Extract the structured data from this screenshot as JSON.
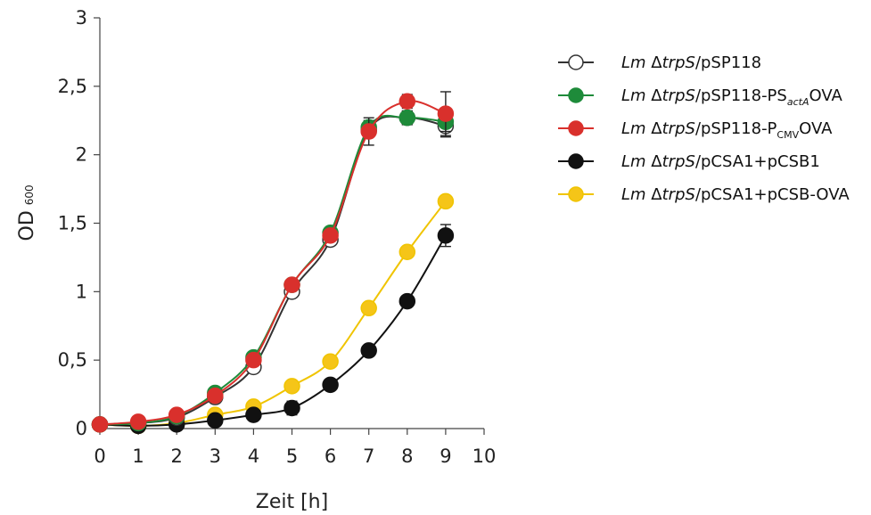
{
  "chart_data": {
    "type": "line",
    "xlabel": "Zeit [h]",
    "ylabel": "OD",
    "ylabel_sub": "600",
    "xlim": [
      0,
      10
    ],
    "ylim": [
      0,
      3
    ],
    "xticks": [
      0,
      1,
      2,
      3,
      4,
      5,
      6,
      7,
      8,
      9,
      10
    ],
    "yticks": [
      0,
      0.5,
      1,
      1.5,
      2,
      2.5,
      3
    ],
    "ytick_labels": [
      "0",
      "0,5",
      "1",
      "1,5",
      "2",
      "2,5",
      "3"
    ],
    "grid": false,
    "legend_position": "right",
    "x": [
      0,
      1,
      2,
      3,
      4,
      5,
      6,
      7,
      8,
      9
    ],
    "series": [
      {
        "legend": {
          "italic1": "Lm ",
          "delta": "Δ",
          "italic2": "trpS",
          "plain": "/pSP118",
          "sub": "",
          "tail": ""
        },
        "color": "#333333",
        "fill": "#ffffff",
        "values": [
          0.03,
          0.04,
          0.08,
          0.23,
          0.45,
          1.0,
          1.38,
          2.18,
          2.27,
          2.21
        ],
        "errors": [
          0.01,
          0.01,
          0.01,
          0.02,
          0.03,
          0.03,
          0.03,
          0.05,
          0.05,
          0.08
        ]
      },
      {
        "legend": {
          "italic1": "Lm ",
          "delta": "Δ",
          "italic2": "trpS",
          "plain": "/pSP118-PS",
          "sub": "actA",
          "tail": "OVA"
        },
        "color": "#1e8b3a",
        "fill": "#1e8b3a",
        "values": [
          0.03,
          0.04,
          0.09,
          0.26,
          0.52,
          1.05,
          1.43,
          2.2,
          2.27,
          2.24
        ],
        "errors": [
          0.01,
          0.01,
          0.01,
          0.02,
          0.03,
          0.03,
          0.03,
          0.05,
          0.05,
          0.07
        ]
      },
      {
        "legend": {
          "italic1": "Lm ",
          "delta": "Δ",
          "italic2": "trpS",
          "plain": "/pSP118-P",
          "sub": "CMV",
          "tail": "OVA"
        },
        "color": "#d9302c",
        "fill": "#d9302c",
        "values": [
          0.03,
          0.05,
          0.1,
          0.24,
          0.5,
          1.05,
          1.41,
          2.17,
          2.39,
          2.3
        ],
        "errors": [
          0.01,
          0.01,
          0.01,
          0.02,
          0.03,
          0.03,
          0.03,
          0.1,
          0.05,
          0.16
        ]
      },
      {
        "legend": {
          "italic1": "Lm ",
          "delta": "Δ",
          "italic2": "trpS",
          "plain": "/pCSA1+pCSB1",
          "sub": "",
          "tail": ""
        },
        "color": "#111111",
        "fill": "#111111",
        "values": [
          0.03,
          0.02,
          0.03,
          0.06,
          0.1,
          0.15,
          0.32,
          0.57,
          0.93,
          1.41
        ],
        "errors": [
          0.01,
          0.01,
          0.01,
          0.01,
          0.02,
          0.05,
          0.02,
          0.02,
          0.03,
          0.08
        ]
      },
      {
        "legend": {
          "italic1": "Lm ",
          "delta": "Δ",
          "italic2": "trpS",
          "plain": "/pCSA1+pCSB-OVA",
          "sub": "",
          "tail": ""
        },
        "color": "#f0c400",
        "fill": "#f5c518",
        "values": [
          0.03,
          0.02,
          0.04,
          0.1,
          0.16,
          0.31,
          0.49,
          0.88,
          1.29,
          1.66
        ],
        "errors": [
          0.01,
          0.01,
          0.01,
          0.01,
          0.02,
          0.02,
          0.02,
          0.03,
          0.03,
          0.03
        ]
      }
    ]
  }
}
